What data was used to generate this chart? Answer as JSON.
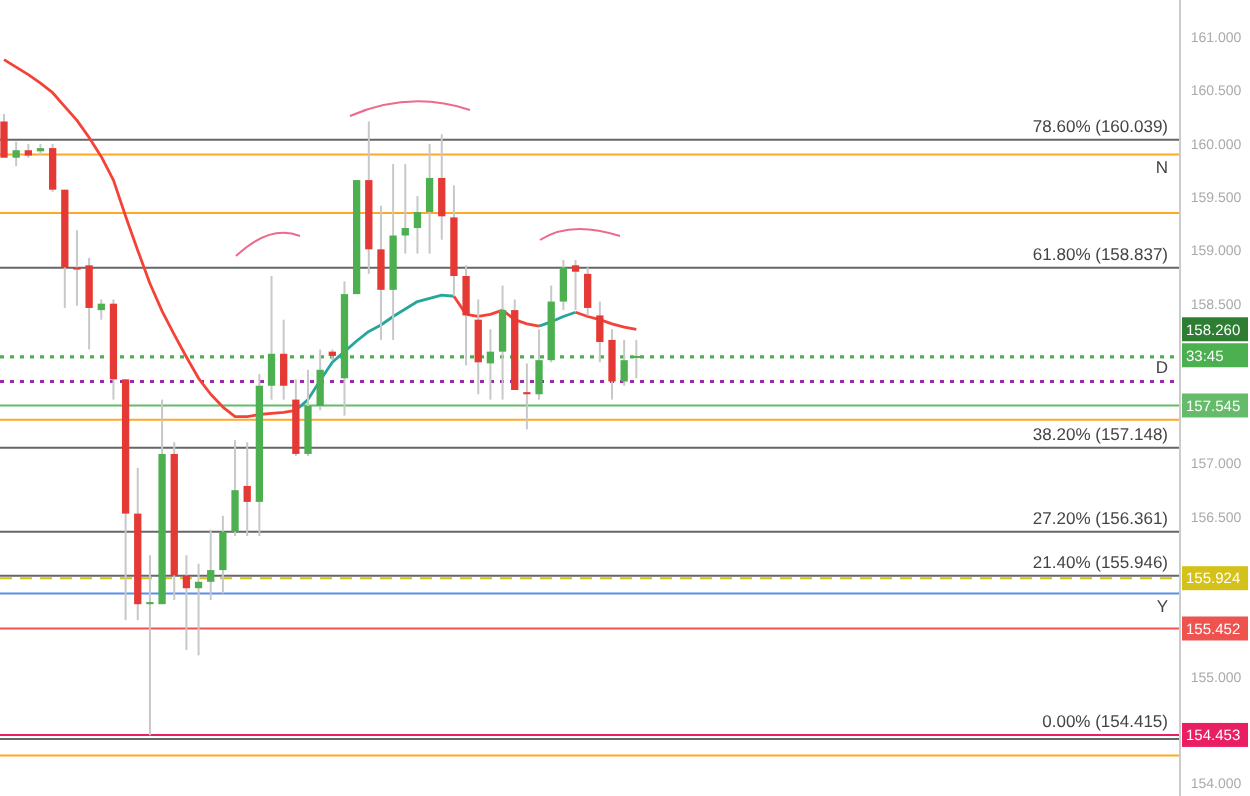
{
  "chart_data": {
    "type": "candlestick",
    "categories": [
      null,
      null,
      null,
      null,
      null,
      null,
      null,
      null,
      null,
      null,
      null,
      null,
      null,
      null,
      null,
      null,
      null,
      null,
      null,
      null,
      null,
      null,
      null,
      null,
      null,
      null,
      null,
      null,
      null,
      null,
      null,
      null,
      null,
      null,
      null,
      null,
      null,
      null,
      null,
      null,
      null,
      null,
      null,
      null,
      null,
      null,
      null,
      null,
      null,
      null,
      null,
      null,
      null,
      null,
      null,
      null,
      null,
      null,
      null,
      null,
      null,
      null,
      null,
      null,
      null,
      null,
      null,
      null,
      null,
      null,
      null,
      null,
      null,
      null,
      null,
      null,
      null,
      null,
      null,
      null,
      null,
      null,
      null,
      null,
      null,
      null,
      null,
      null,
      null,
      null,
      null,
      null,
      null,
      null,
      null,
      null,
      null
    ],
    "ohlc": [
      [
        160.21,
        160.28,
        159.87,
        159.87
      ],
      [
        159.87,
        160.02,
        159.79,
        159.94
      ],
      [
        159.94,
        160.0,
        159.87,
        159.89
      ],
      [
        159.93,
        160.0,
        159.89,
        159.96
      ],
      [
        159.96,
        160.0,
        159.55,
        159.57
      ],
      [
        159.57,
        159.57,
        158.46,
        158.84
      ],
      [
        158.84,
        159.19,
        158.48,
        158.82
      ],
      [
        158.86,
        158.93,
        158.07,
        158.46
      ],
      [
        158.44,
        158.54,
        158.35,
        158.5
      ],
      [
        158.5,
        158.54,
        157.6,
        157.79
      ],
      [
        157.79,
        157.79,
        155.53,
        156.53
      ],
      [
        156.53,
        156.96,
        155.53,
        155.68
      ],
      [
        155.68,
        156.14,
        154.45,
        155.7
      ],
      [
        155.68,
        157.6,
        155.68,
        157.09
      ],
      [
        157.09,
        157.2,
        155.72,
        155.95
      ],
      [
        155.95,
        156.14,
        155.25,
        155.83
      ],
      [
        155.83,
        156.06,
        155.2,
        155.89
      ],
      [
        155.89,
        156.38,
        155.72,
        156.0
      ],
      [
        156.0,
        156.51,
        155.78,
        156.36
      ],
      [
        156.36,
        157.22,
        156.32,
        156.75
      ],
      [
        156.79,
        157.2,
        156.32,
        156.64
      ],
      [
        156.64,
        157.84,
        156.32,
        157.73
      ],
      [
        157.73,
        158.76,
        157.6,
        158.03
      ],
      [
        158.03,
        158.35,
        157.6,
        157.73
      ],
      [
        157.6,
        157.79,
        157.07,
        157.09
      ],
      [
        157.09,
        157.88,
        157.07,
        157.54
      ],
      [
        157.54,
        158.07,
        157.5,
        157.88
      ],
      [
        158.05,
        158.07,
        157.97,
        158.01
      ],
      [
        157.8,
        158.71,
        157.45,
        158.59
      ],
      [
        158.59,
        159.66,
        158.59,
        159.66
      ],
      [
        159.66,
        160.21,
        158.78,
        159.01
      ],
      [
        159.01,
        159.42,
        158.16,
        158.63
      ],
      [
        158.63,
        159.81,
        158.16,
        159.14
      ],
      [
        159.14,
        159.81,
        158.97,
        159.21
      ],
      [
        159.21,
        159.51,
        158.97,
        159.36
      ],
      [
        159.36,
        160.0,
        158.97,
        159.68
      ],
      [
        159.68,
        160.09,
        159.1,
        159.32
      ],
      [
        159.31,
        159.61,
        158.57,
        158.76
      ],
      [
        158.76,
        158.86,
        157.92,
        158.39
      ],
      [
        158.35,
        158.54,
        157.65,
        157.95
      ],
      [
        157.94,
        158.26,
        157.6,
        158.05
      ],
      [
        158.05,
        158.67,
        157.6,
        158.44
      ],
      [
        158.44,
        158.54,
        157.69,
        157.69
      ],
      [
        157.67,
        157.94,
        157.32,
        157.65
      ],
      [
        157.65,
        158.26,
        157.6,
        157.97
      ],
      [
        157.97,
        158.67,
        157.95,
        158.52
      ],
      [
        158.52,
        158.91,
        158.44,
        158.84
      ],
      [
        158.86,
        158.91,
        158.44,
        158.8
      ],
      [
        158.78,
        158.84,
        158.39,
        158.46
      ],
      [
        158.39,
        158.52,
        157.95,
        158.14
      ],
      [
        158.16,
        158.26,
        157.6,
        157.77
      ],
      [
        157.77,
        158.16,
        157.73,
        157.97
      ],
      [
        157.99,
        158.16,
        157.8,
        158.01
      ],
      null,
      null,
      null,
      null,
      null,
      null,
      null,
      null,
      null,
      null,
      null,
      null,
      null,
      null,
      null,
      null,
      null,
      null,
      null,
      null,
      null,
      null,
      null,
      null,
      null,
      null,
      null,
      null,
      null,
      null,
      null,
      null,
      null,
      null,
      null,
      null,
      null,
      null,
      null,
      null,
      null,
      null,
      null,
      null
    ],
    "colors": [
      "#e53935",
      "#4caf50",
      "#e53935",
      "#4caf50",
      "#e53935",
      "#e53935",
      "#e53935",
      "#e53935",
      "#4caf50",
      "#e53935",
      "#e53935",
      "#e53935",
      "#4caf50",
      "#4caf50",
      "#e53935",
      "#e53935",
      "#4caf50",
      "#4caf50",
      "#4caf50",
      "#4caf50",
      "#e53935",
      "#4caf50",
      "#4caf50",
      "#e53935",
      "#e53935",
      "#4caf50",
      "#4caf50",
      "#e53935",
      "#4caf50",
      "#4caf50",
      "#e53935",
      "#e53935",
      "#4caf50",
      "#4caf50",
      "#4caf50",
      "#4caf50",
      "#e53935",
      "#e53935",
      "#e53935",
      "#e53935",
      "#4caf50",
      "#4caf50",
      "#e53935",
      "#e53935",
      "#4caf50",
      "#4caf50",
      "#4caf50",
      "#e53935",
      "#e53935",
      "#e53935",
      "#e53935",
      "#4caf50",
      "#4caf50",
      null,
      null,
      null,
      null,
      null,
      null,
      null,
      null,
      null,
      null,
      null,
      null,
      null,
      null,
      null,
      null,
      null,
      null,
      null,
      null,
      null,
      null,
      null,
      null,
      null,
      null,
      null,
      null,
      null,
      null,
      null,
      null,
      null,
      null,
      null,
      null,
      null,
      null,
      null,
      null,
      null,
      null,
      null,
      null
    ],
    "series": [
      {
        "type": "line",
        "color": "#f44336",
        "values": [
          160.79,
          160.72,
          160.65,
          160.57,
          160.48,
          160.35,
          160.22,
          160.06,
          159.88,
          159.66,
          159.32,
          159.0,
          158.69,
          158.43,
          158.21,
          158.0,
          157.8,
          157.65,
          157.53,
          157.44,
          157.44,
          157.46,
          157.47,
          157.48,
          157.5,
          null,
          null,
          null,
          null,
          null,
          null,
          null,
          null,
          null,
          null,
          null,
          null,
          158.57,
          158.4,
          158.38,
          158.4,
          158.44,
          158.35,
          158.31,
          158.29,
          null,
          null,
          158.42,
          158.38,
          158.35,
          158.31,
          158.28,
          158.26,
          null,
          null,
          null,
          null,
          null,
          null,
          null,
          null,
          null,
          null,
          null,
          null,
          null,
          null,
          null,
          null,
          null,
          null,
          null,
          null,
          null,
          null,
          null,
          null,
          null,
          null,
          null,
          null,
          null,
          null,
          null,
          null,
          null,
          null,
          null,
          null,
          null,
          null,
          null,
          null,
          null,
          null,
          null,
          null
        ]
      },
      {
        "type": "line",
        "color": "#26a69a",
        "values": [
          null,
          null,
          null,
          null,
          null,
          null,
          null,
          null,
          null,
          null,
          null,
          null,
          null,
          null,
          null,
          null,
          null,
          null,
          null,
          null,
          null,
          null,
          null,
          null,
          157.5,
          157.6,
          157.78,
          157.95,
          158.05,
          158.15,
          158.24,
          158.3,
          158.38,
          158.45,
          158.52,
          158.55,
          158.58,
          158.57,
          null,
          null,
          null,
          null,
          null,
          null,
          158.29,
          158.33,
          158.38,
          158.42,
          null,
          null,
          null,
          null,
          null,
          null,
          null,
          null,
          null,
          null,
          null,
          null,
          null,
          null,
          null,
          null,
          null,
          null,
          null,
          null,
          null,
          null,
          null,
          null,
          null,
          null,
          null,
          null,
          null,
          null,
          null,
          null,
          null,
          null,
          null,
          null,
          null,
          null,
          null,
          null,
          null,
          null,
          null,
          null,
          null,
          null,
          null,
          null,
          null
        ]
      }
    ],
    "ylim": [
      153.88,
      161.35
    ],
    "yticks": [
      {
        "value": 161,
        "label": "161.000"
      },
      {
        "value": 160.5,
        "label": "160.500"
      },
      {
        "value": 160,
        "label": "160.000"
      },
      {
        "value": 159.5,
        "label": "159.500"
      },
      {
        "value": 159,
        "label": "159.000"
      },
      {
        "value": 158.5,
        "label": "158.500"
      },
      {
        "value": 157,
        "label": "157.000"
      },
      {
        "value": 156.5,
        "label": "156.500"
      },
      {
        "value": 155,
        "label": "155.000"
      },
      {
        "value": 154,
        "label": "154.000"
      }
    ],
    "tick_labels": "y",
    "marker": "none",
    "line_style": "solid",
    "ref_lines": [
      {
        "axis": "y",
        "value": 160.039,
        "label": "78.60% (160.039)",
        "color": "#666666"
      },
      {
        "axis": "y",
        "value": 158.837,
        "label": "61.80% (158.837)",
        "color": "#666666"
      },
      {
        "axis": "y",
        "value": 157.148,
        "label": "38.20% (157.148)",
        "color": "#666666"
      },
      {
        "axis": "y",
        "value": 156.361,
        "label": "27.20% (156.361)",
        "color": "#666666"
      },
      {
        "axis": "y",
        "value": 155.946,
        "label": "21.40% (155.946)",
        "color": "#666666"
      },
      {
        "axis": "y",
        "value": 154.415,
        "label": "0.00% (154.415)",
        "color": "#666666"
      },
      {
        "axis": "y",
        "value": 159.9,
        "label": "N",
        "color": "#ffa726"
      },
      {
        "axis": "y",
        "value": 159.35,
        "color": "#ffa726"
      },
      {
        "axis": "y",
        "value": 157.41,
        "color": "#ffa726"
      },
      {
        "axis": "y",
        "value": 154.26,
        "color": "#ffa726"
      },
      {
        "axis": "y",
        "value": 157.545,
        "color": "#66bb6a"
      },
      {
        "axis": "y",
        "value": 158.0,
        "color": "#4caf50",
        "line_style": "dotted"
      },
      {
        "axis": "y",
        "value": 157.77,
        "label": "D",
        "color": "#9c27b0",
        "line_style": "dotted"
      },
      {
        "axis": "y",
        "value": 155.924,
        "color": "#d4c21a",
        "line_style": "dashed"
      },
      {
        "axis": "y",
        "value": 155.78,
        "label": "Y",
        "color": "#5b8def"
      },
      {
        "axis": "y",
        "value": 155.452,
        "color": "#ef5350"
      },
      {
        "axis": "y",
        "value": 154.453,
        "color": "#e91e63"
      }
    ],
    "annotations": [
      {
        "text": "158.260",
        "y": 158.26
      },
      "33:45",
      {
        "text": "157.545",
        "y": 157.545
      },
      {
        "text": "155.924",
        "y": 155.924
      },
      {
        "text": "155.452",
        "y": 155.452
      },
      {
        "text": "154.453",
        "y": 154.453
      }
    ]
  }
}
